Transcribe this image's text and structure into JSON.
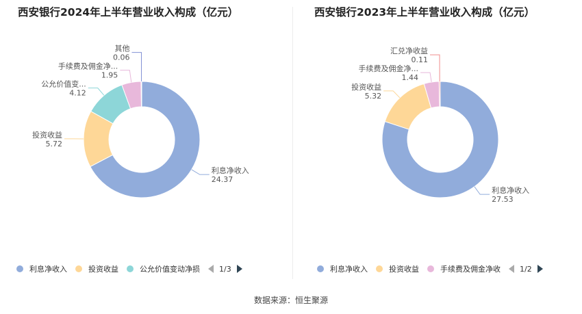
{
  "chart_data": [
    {
      "type": "pie",
      "title": "西安银行2024年上半年营业收入构成（亿元）",
      "slices": [
        {
          "name": "利息净收入",
          "label": "利息净收入",
          "value": 24.37,
          "value_text": "24.37",
          "color": "#91acdb"
        },
        {
          "name": "投资收益",
          "label": "投资收益",
          "value": 5.72,
          "value_text": "5.72",
          "color": "#fed797"
        },
        {
          "name": "公允价值变动净损",
          "label": "公允价值变...",
          "value": 4.12,
          "value_text": "4.12",
          "color": "#8dd6d8"
        },
        {
          "name": "手续费及佣金净收入",
          "label": "手续费及佣金净...",
          "value": 1.95,
          "value_text": "1.95",
          "color": "#e8b8db"
        },
        {
          "name": "其他",
          "label": "其他",
          "value": 0.06,
          "value_text": "0.06",
          "color": "#8190d4"
        }
      ],
      "legend": [
        "利息净收入",
        "投资收益",
        "公允价值变动净损"
      ],
      "legend_page": "1/3"
    },
    {
      "type": "pie",
      "title": "西安银行2023年上半年营业收入构成（亿元）",
      "slices": [
        {
          "name": "利息净收入",
          "label": "利息净收入",
          "value": 27.53,
          "value_text": "27.53",
          "color": "#91acdb"
        },
        {
          "name": "投资收益",
          "label": "投资收益",
          "value": 5.32,
          "value_text": "5.32",
          "color": "#fed797"
        },
        {
          "name": "手续费及佣金净收入",
          "label": "手续费及佣金净...",
          "value": 1.44,
          "value_text": "1.44",
          "color": "#e8b8db"
        },
        {
          "name": "汇兑净收益",
          "label": "汇兑净收益",
          "value": 0.11,
          "value_text": "0.11",
          "color": "#f08c8c"
        }
      ],
      "legend": [
        "利息净收入",
        "投资收益",
        "手续费及佣金净收"
      ],
      "legend_page": "1/2"
    }
  ],
  "footer": {
    "source_label": "数据来源：",
    "source_value": "恒生聚源"
  }
}
